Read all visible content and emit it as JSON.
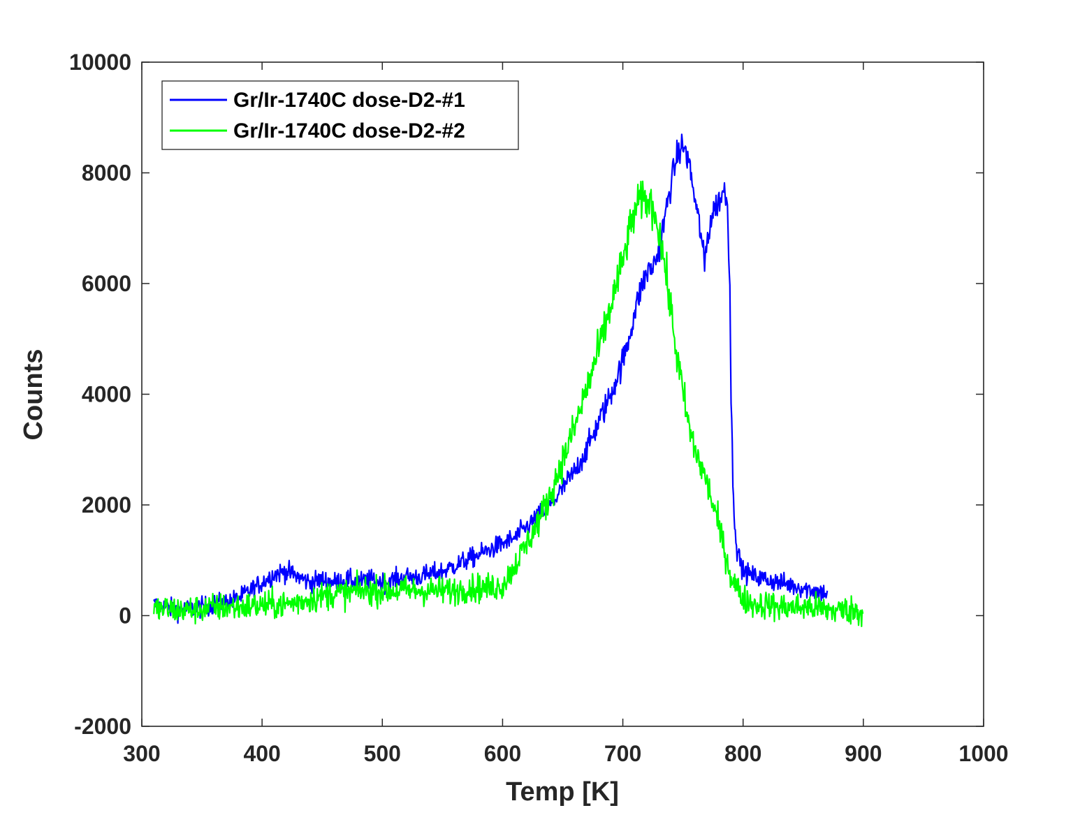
{
  "chart_data": {
    "type": "line",
    "xlabel": "Temp [K]",
    "ylabel": "Counts",
    "xlim": [
      300,
      1000
    ],
    "ylim": [
      -2000,
      10000
    ],
    "xticks": [
      "300",
      "400",
      "500",
      "600",
      "700",
      "800",
      "900",
      "1000"
    ],
    "yticks": [
      "-2000",
      "0",
      "2000",
      "4000",
      "6000",
      "8000",
      "10000"
    ],
    "grid": false,
    "legend_position": "top-left",
    "series": [
      {
        "name": "Gr/Ir-1740C dose-D2-#1",
        "color": "#0000ff",
        "x": [
          310,
          320,
          330,
          340,
          350,
          360,
          370,
          380,
          390,
          400,
          410,
          420,
          430,
          440,
          450,
          460,
          470,
          480,
          490,
          500,
          510,
          520,
          530,
          540,
          550,
          560,
          570,
          580,
          590,
          600,
          610,
          620,
          630,
          640,
          650,
          660,
          670,
          680,
          690,
          700,
          705,
          710,
          715,
          720,
          725,
          730,
          735,
          740,
          745,
          750,
          755,
          760,
          765,
          768,
          770,
          775,
          780,
          785,
          787,
          789,
          790,
          792,
          795,
          800,
          810,
          820,
          830,
          840,
          850,
          860,
          870
        ],
        "y": [
          200,
          150,
          100,
          120,
          150,
          200,
          250,
          300,
          450,
          600,
          750,
          800,
          700,
          600,
          650,
          600,
          650,
          600,
          650,
          600,
          650,
          700,
          700,
          750,
          800,
          900,
          1000,
          1100,
          1200,
          1300,
          1400,
          1600,
          1800,
          2000,
          2300,
          2600,
          3000,
          3500,
          4000,
          4600,
          5000,
          5500,
          5900,
          6200,
          6300,
          6600,
          7200,
          7800,
          8300,
          8500,
          8200,
          7500,
          6900,
          6300,
          6800,
          7300,
          7500,
          7700,
          7400,
          6000,
          4000,
          2000,
          1200,
          800,
          700,
          650,
          600,
          550,
          500,
          450,
          400
        ]
      },
      {
        "name": "Gr/Ir-1740C dose-D2-#2",
        "color": "#00ff00",
        "x": [
          310,
          320,
          330,
          340,
          350,
          360,
          370,
          380,
          390,
          400,
          410,
          420,
          430,
          440,
          450,
          460,
          470,
          480,
          490,
          500,
          510,
          520,
          530,
          540,
          550,
          560,
          570,
          580,
          590,
          600,
          610,
          620,
          630,
          640,
          650,
          660,
          670,
          680,
          690,
          700,
          705,
          710,
          715,
          720,
          725,
          730,
          735,
          740,
          745,
          750,
          755,
          760,
          770,
          780,
          790,
          800,
          810,
          820,
          830,
          840,
          850,
          860,
          870,
          880,
          890,
          900
        ],
        "y": [
          100,
          120,
          100,
          100,
          120,
          150,
          150,
          150,
          170,
          180,
          200,
          200,
          250,
          300,
          350,
          400,
          400,
          450,
          450,
          450,
          450,
          450,
          450,
          450,
          450,
          450,
          500,
          500,
          500,
          550,
          900,
          1300,
          1700,
          2200,
          2800,
          3400,
          4100,
          4800,
          5600,
          6400,
          6900,
          7300,
          7500,
          7500,
          7400,
          7000,
          6300,
          5500,
          4700,
          4000,
          3400,
          3000,
          2400,
          1600,
          700,
          300,
          200,
          200,
          150,
          150,
          150,
          150,
          100,
          100,
          100,
          50
        ]
      }
    ]
  }
}
